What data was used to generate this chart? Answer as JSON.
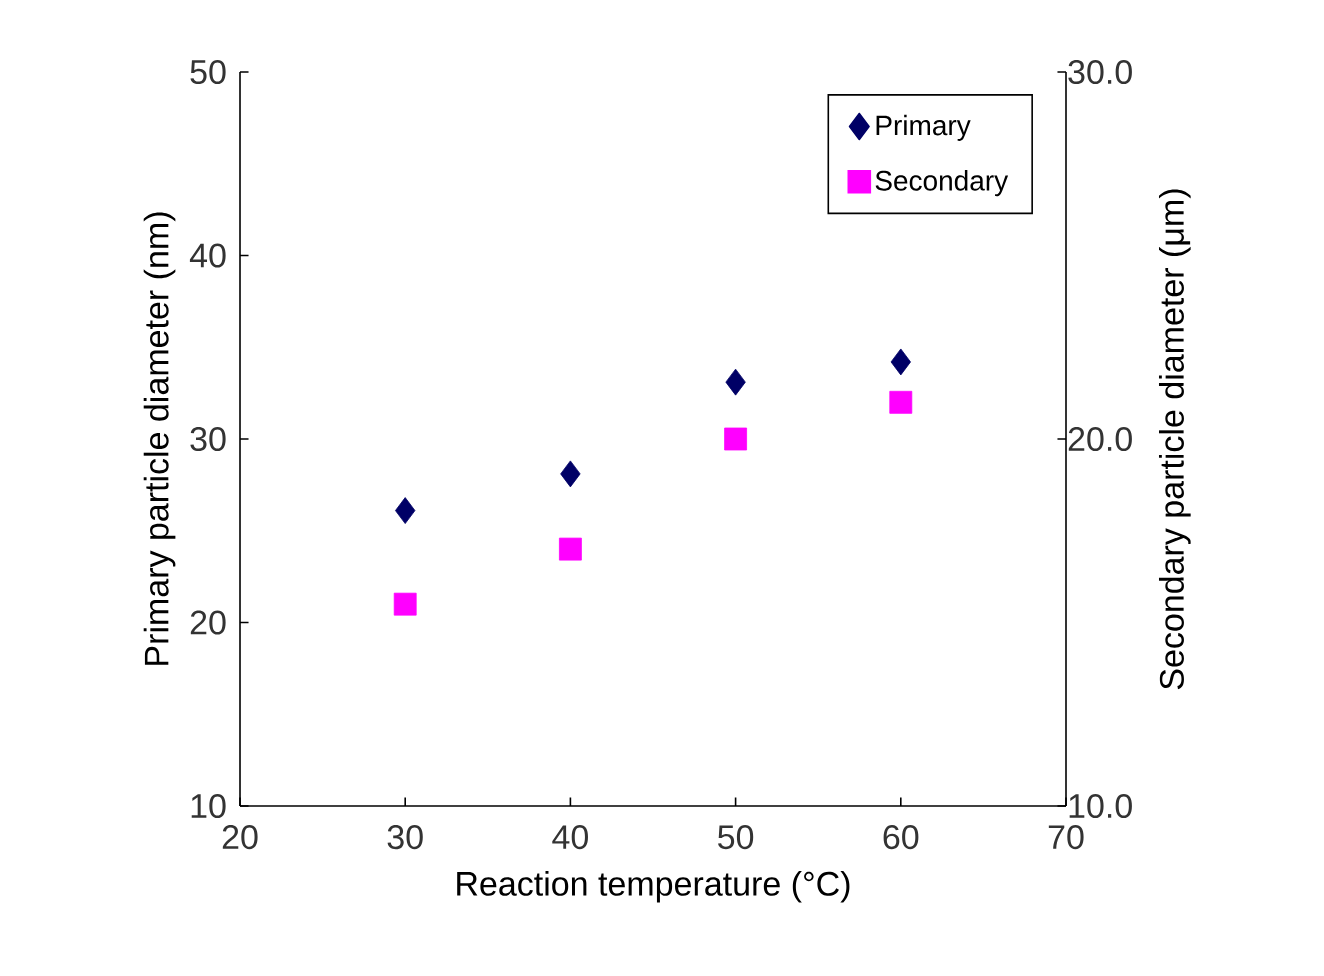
{
  "chart_data": {
    "type": "scatter",
    "xlabel": "Reaction temperature (°C)",
    "ylabel": "Primary particle diameter (nm)",
    "y2label": "Secondary particle diameter (μm)",
    "x": [
      30,
      40,
      50,
      60
    ],
    "series": [
      {
        "name": "Primary",
        "color": "#000066",
        "marker": "diamond",
        "values": [
          26.1,
          28.1,
          33.1,
          34.2
        ]
      },
      {
        "name": "Secondary",
        "color": "#ff00ff",
        "marker": "square",
        "axis": "y2",
        "values": [
          15.5,
          17.0,
          20.0,
          21.0
        ]
      }
    ],
    "xlim": [
      20,
      70
    ],
    "xticks": [
      20,
      30,
      40,
      50,
      60,
      70
    ],
    "ylim": [
      10,
      50
    ],
    "yticks": [
      10,
      20,
      30,
      40,
      50
    ],
    "y2lim": [
      10,
      30
    ],
    "y2ticks": [
      {
        "value": 10,
        "label": "10.0"
      },
      {
        "value": 20,
        "label": "20.0"
      },
      {
        "value": 30,
        "label": "30.0"
      }
    ],
    "grid": false,
    "legend": "top right"
  }
}
